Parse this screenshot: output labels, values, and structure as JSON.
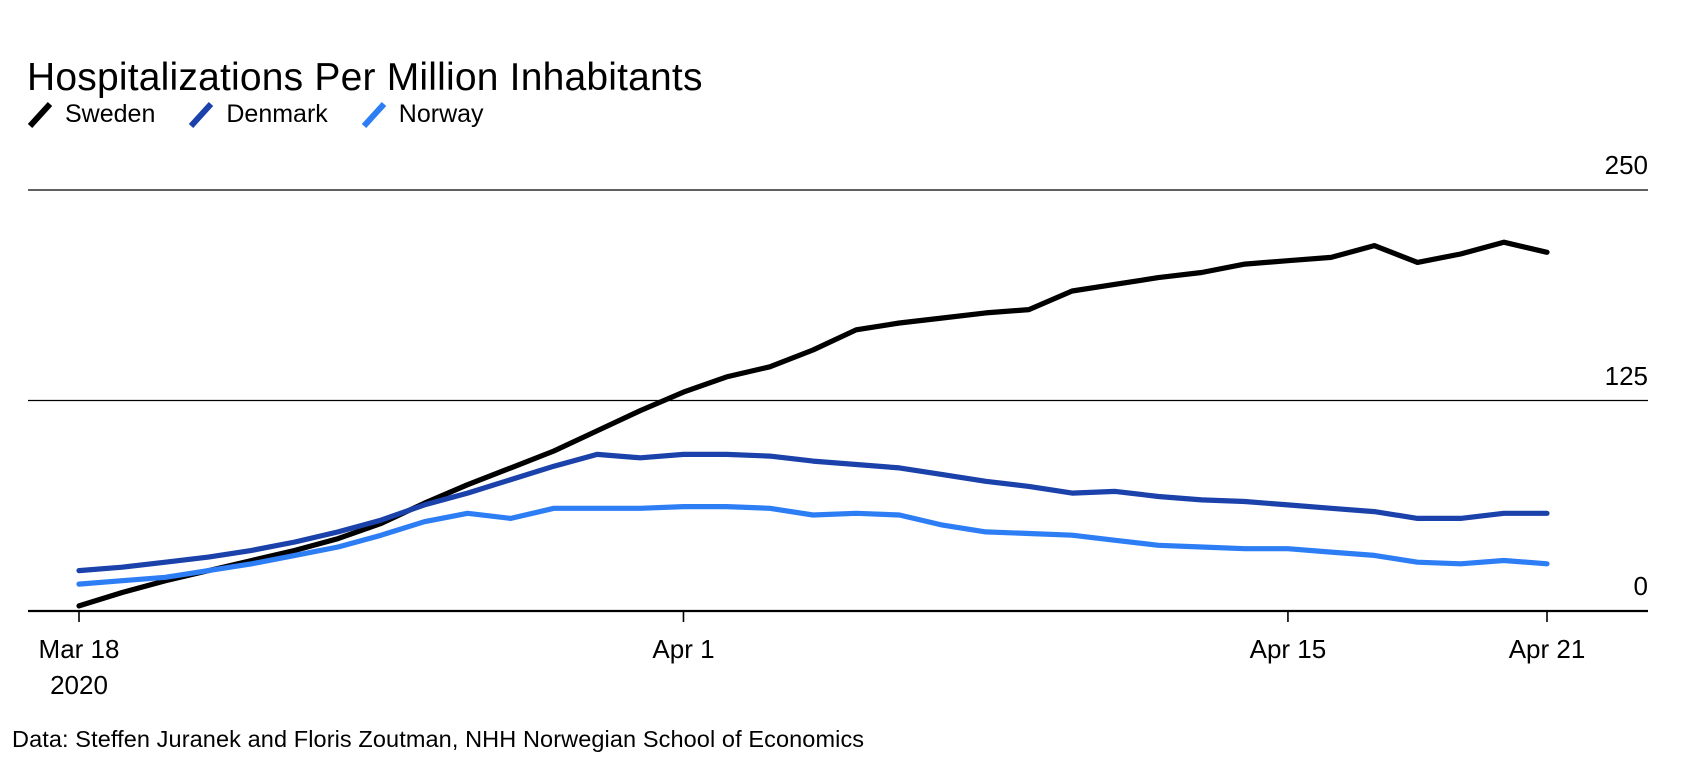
{
  "source": {
    "text": "Data: Steffen Juranek and Floris Zoutman, NHH Norwegian School of Economics"
  },
  "chart_data": {
    "type": "line",
    "title": "Hospitalizations Per Million Inhabitants",
    "xlabel": "",
    "ylabel": "",
    "ylim": [
      0,
      250
    ],
    "grid": "horizontal",
    "legend_position": "top-left",
    "x_unit": "days since Mar 18 2020",
    "x_ticks": [
      {
        "label": "Mar 18",
        "sublabel": "2020",
        "day": 0
      },
      {
        "label": "Apr 1",
        "day": 14
      },
      {
        "label": "Apr 15",
        "day": 28
      },
      {
        "label": "Apr 21",
        "day": 34
      }
    ],
    "y_ticks": [
      {
        "label": "0",
        "value": 0
      },
      {
        "label": "125",
        "value": 125
      },
      {
        "label": "250",
        "value": 250
      }
    ],
    "dates": [
      "Mar 18",
      "Mar 19",
      "Mar 20",
      "Mar 21",
      "Mar 22",
      "Mar 23",
      "Mar 24",
      "Mar 25",
      "Mar 26",
      "Mar 27",
      "Mar 28",
      "Mar 29",
      "Mar 30",
      "Mar 31",
      "Apr 1",
      "Apr 2",
      "Apr 3",
      "Apr 4",
      "Apr 5",
      "Apr 6",
      "Apr 7",
      "Apr 8",
      "Apr 9",
      "Apr 10",
      "Apr 11",
      "Apr 12",
      "Apr 13",
      "Apr 14",
      "Apr 15",
      "Apr 16",
      "Apr 17",
      "Apr 18",
      "Apr 19",
      "Apr 20",
      "Apr 21"
    ],
    "series": [
      {
        "name": "Sweden",
        "color": "#000000",
        "values": [
          3,
          11,
          18,
          24,
          30,
          36,
          43,
          52,
          64,
          75,
          85,
          95,
          107,
          119,
          130,
          139,
          145,
          155,
          167,
          171,
          174,
          177,
          179,
          190,
          194,
          198,
          201,
          206,
          208,
          210,
          217,
          207,
          212,
          219,
          213
        ]
      },
      {
        "name": "Denmark",
        "color": "#1b41aa",
        "values": [
          24,
          26,
          29,
          32,
          36,
          41,
          47,
          54,
          63,
          70,
          78,
          86,
          93,
          91,
          93,
          93,
          92,
          89,
          87,
          85,
          81,
          77,
          74,
          70,
          71,
          68,
          66,
          65,
          63,
          61,
          59,
          55,
          55,
          58,
          58
        ]
      },
      {
        "name": "Norway",
        "color": "#2d7df5",
        "values": [
          16,
          18,
          20,
          24,
          28,
          33,
          38,
          45,
          53,
          58,
          55,
          61,
          61,
          61,
          62,
          62,
          61,
          57,
          58,
          57,
          51,
          47,
          46,
          45,
          42,
          39,
          38,
          37,
          37,
          35,
          33,
          29,
          28,
          30,
          28
        ]
      }
    ]
  }
}
